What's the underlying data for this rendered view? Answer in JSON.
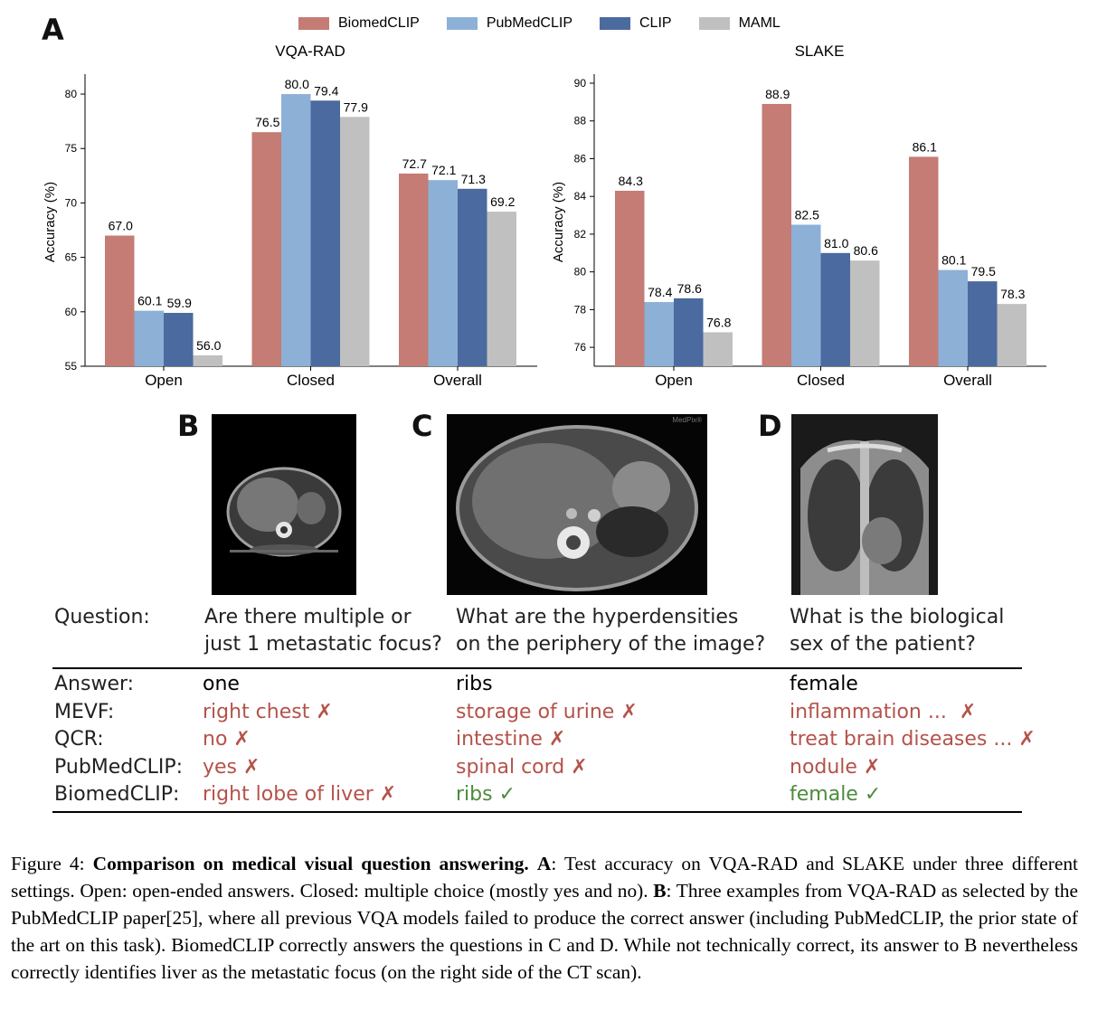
{
  "panels": {
    "a": "A",
    "b": "B",
    "c": "C",
    "d": "D"
  },
  "colors": {
    "BiomedCLIP": "#c47c75",
    "PubMedCLIP": "#8db0d6",
    "CLIP": "#4b6a9f",
    "MAML": "#c0c0c0"
  },
  "chart_data": [
    {
      "type": "bar",
      "title": "VQA-RAD",
      "xlabel": "",
      "ylabel": "Accuracy (%)",
      "categories": [
        "Open",
        "Closed",
        "Overall"
      ],
      "ylim": [
        55,
        81
      ],
      "yticks": [
        "55",
        "60",
        "65",
        "70",
        "75",
        "80"
      ],
      "series": [
        {
          "name": "BiomedCLIP",
          "values": [
            67.0,
            76.5,
            72.7
          ],
          "labels": [
            "67.0",
            "76.5",
            "72.7"
          ]
        },
        {
          "name": "PubMedCLIP",
          "values": [
            60.1,
            80.0,
            72.1
          ],
          "labels": [
            "60.1",
            "80.0",
            "72.1"
          ]
        },
        {
          "name": "CLIP",
          "values": [
            59.9,
            79.4,
            71.3
          ],
          "labels": [
            "59.9",
            "79.4",
            "71.3"
          ]
        },
        {
          "name": "MAML",
          "values": [
            56.0,
            77.9,
            69.2
          ],
          "labels": [
            "56.0",
            "77.9",
            "69.2"
          ]
        }
      ]
    },
    {
      "type": "bar",
      "title": "SLAKE",
      "xlabel": "",
      "ylabel": "Accuracy (%)",
      "categories": [
        "Open",
        "Closed",
        "Overall"
      ],
      "ylim": [
        75,
        90
      ],
      "yticks": [
        "76",
        "78",
        "80",
        "82",
        "84",
        "86",
        "88",
        "90"
      ],
      "series": [
        {
          "name": "BiomedCLIP",
          "values": [
            84.3,
            88.9,
            86.1
          ],
          "labels": [
            "84.3",
            "88.9",
            "86.1"
          ]
        },
        {
          "name": "PubMedCLIP",
          "values": [
            78.4,
            82.5,
            80.1
          ],
          "labels": [
            "78.4",
            "82.5",
            "80.1"
          ]
        },
        {
          "name": "CLIP",
          "values": [
            78.6,
            81.0,
            79.5
          ],
          "labels": [
            "78.6",
            "81.0",
            "79.5"
          ]
        },
        {
          "name": "MAML",
          "values": [
            76.8,
            80.6,
            78.3
          ],
          "labels": [
            "76.8",
            "80.6",
            "78.3"
          ]
        }
      ]
    }
  ],
  "legend": [
    "BiomedCLIP",
    "PubMedCLIP",
    "CLIP",
    "MAML"
  ],
  "table": {
    "question_label": "Question:",
    "questions": [
      [
        "Are there multiple or",
        "just 1 metastatic focus?"
      ],
      [
        "What are the hyperdensities",
        "on the periphery of the image?"
      ],
      [
        "What is the biological",
        "sex of the patient?"
      ]
    ],
    "rows": [
      {
        "label": "Answer:",
        "cells": [
          "one",
          "ribs",
          "female"
        ],
        "status": [
          "answer",
          "answer",
          "answer"
        ]
      },
      {
        "label": "MEVF:",
        "cells": [
          "right chest ✗",
          "storage of urine ✗",
          "inflammation ...  ✗"
        ],
        "status": [
          "wrong",
          "wrong",
          "wrong"
        ]
      },
      {
        "label": "QCR:",
        "cells": [
          "no ✗",
          "intestine ✗",
          "treat brain diseases ... ✗"
        ],
        "status": [
          "wrong",
          "wrong",
          "wrong"
        ]
      },
      {
        "label": "PubMedCLIP:",
        "cells": [
          "yes ✗",
          "spinal cord ✗",
          "nodule ✗"
        ],
        "status": [
          "wrong",
          "wrong",
          "wrong"
        ]
      },
      {
        "label": "BiomedCLIP:",
        "cells": [
          "right lobe of liver ✗",
          "ribs ✓",
          "female ✓"
        ],
        "status": [
          "wrong",
          "right",
          "right"
        ]
      }
    ]
  },
  "images": {
    "c_watermark": "MedPix®"
  },
  "caption": {
    "fig": "Figure 4: ",
    "title": "Comparison on medical visual question answering.",
    "a_label": "A",
    "a_text": ": Test accuracy on VQA-RAD and SLAKE under three different settings. Open: open-ended answers. Closed: multiple choice (mostly yes and no). ",
    "b_label": "B",
    "b_text": ": Three examples from VQA-RAD as selected by the PubMedCLIP paper[25], where all previous VQA models failed to produce the correct answer (including PubMedCLIP, the prior state of the art on this task). BiomedCLIP correctly answers the questions in C and D. While not technically correct, its answer to B nevertheless correctly identifies liver as the metastatic focus (on the right side of the CT scan)."
  }
}
